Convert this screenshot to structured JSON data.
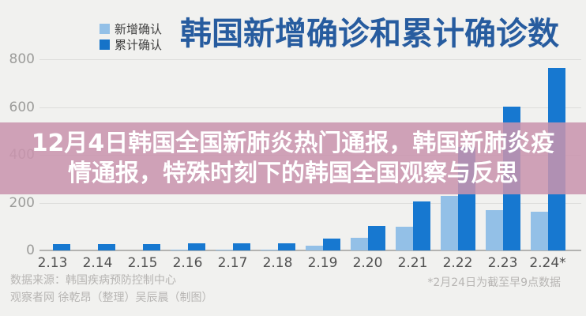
{
  "legend": {
    "items": [
      {
        "label": "新增确认",
        "color": "#93c0e7"
      },
      {
        "label": "累计确认",
        "color": "#1673c8"
      }
    ]
  },
  "title": "韩国新增确诊和累计确诊数",
  "overlay": {
    "lines": [
      "12月4日韩国全国新肺炎热门通报，韩国新肺炎疫",
      "情通报，特殊时刻下的韩国全国观察与反思"
    ]
  },
  "chart_data": {
    "type": "bar",
    "title": "韩国新增确诊和累计确诊数",
    "categories": [
      "2.13",
      "2.14",
      "2.15",
      "2.16",
      "2.17",
      "2.18",
      "2.19",
      "2.20",
      "2.21",
      "2.22",
      "2.23",
      "2.24*"
    ],
    "series": [
      {
        "name": "新增确认",
        "color": "#93c0e7",
        "values": [
          0,
          0,
          0,
          1,
          1,
          1,
          20,
          53,
          100,
          229,
          169,
          161
        ]
      },
      {
        "name": "累计确认",
        "color": "#1778d0",
        "values": [
          28,
          28,
          28,
          29,
          30,
          31,
          51,
          104,
          204,
          433,
          602,
          763
        ]
      }
    ],
    "ylim": [
      0,
      800
    ],
    "yticks": [
      0,
      200,
      400,
      600,
      800
    ],
    "grid": "horizontal",
    "legend_position": "top-left"
  },
  "footer": {
    "source_line1": "数据来源：韩国疾病预防控制中心",
    "source_line2": "观察者网 徐乾昂（整理）吴辰晨（制图）",
    "note": "*2月24日为截至早9点数据"
  }
}
